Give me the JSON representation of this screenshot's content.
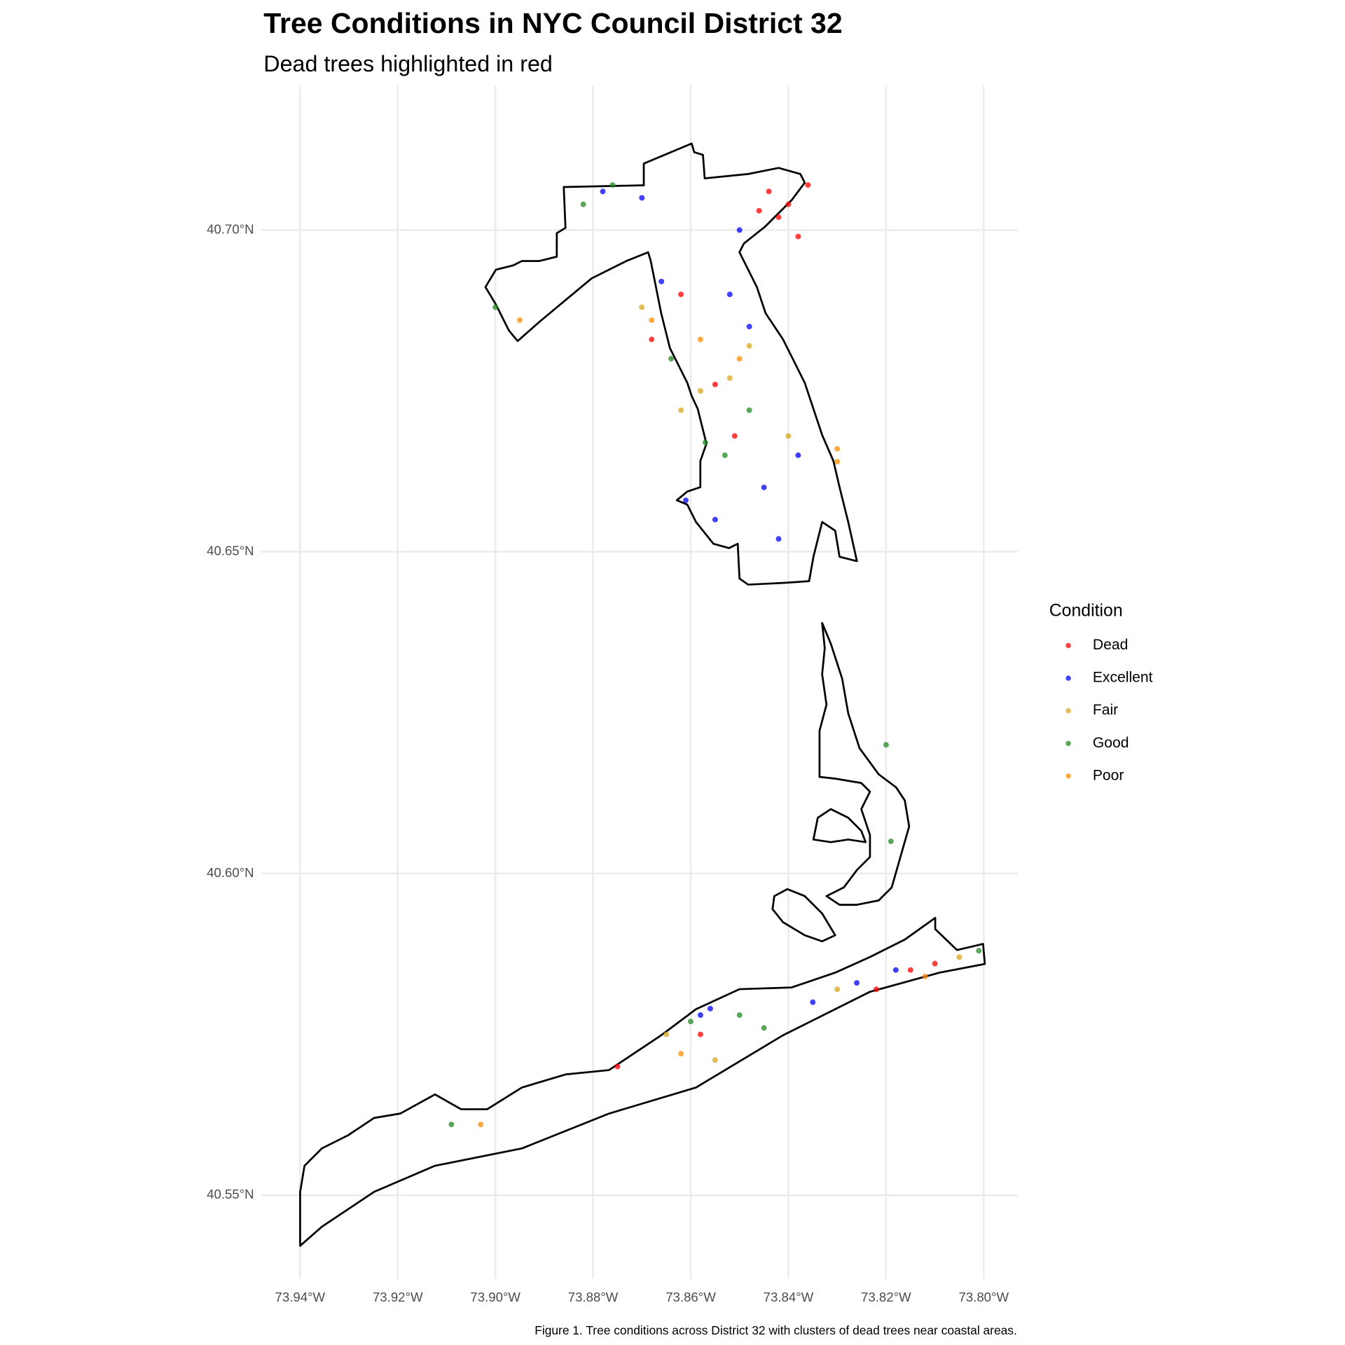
{
  "chart_data": {
    "type": "scatter",
    "title": "Tree Conditions in NYC Council District 32",
    "subtitle": "Dead trees highlighted in red",
    "caption": "Figure 1. Tree conditions across District 32 with clusters of dead trees near coastal areas.",
    "legend_title": "Condition",
    "legend_position": "right",
    "grid": true,
    "xlim": [
      -73.948,
      -73.793
    ],
    "ylim": [
      40.537,
      40.7225
    ],
    "xticks": [
      {
        "value": -73.94,
        "label": "73.94°W"
      },
      {
        "value": -73.92,
        "label": "73.92°W"
      },
      {
        "value": -73.9,
        "label": "73.90°W"
      },
      {
        "value": -73.88,
        "label": "73.88°W"
      },
      {
        "value": -73.86,
        "label": "73.86°W"
      },
      {
        "value": -73.84,
        "label": "73.84°W"
      },
      {
        "value": -73.82,
        "label": "73.82°W"
      },
      {
        "value": -73.8,
        "label": "73.80°W"
      }
    ],
    "yticks": [
      {
        "value": 40.55,
        "label": "40.55°N"
      },
      {
        "value": 40.6,
        "label": "40.60°N"
      },
      {
        "value": 40.65,
        "label": "40.65°N"
      },
      {
        "value": 40.7,
        "label": "40.70°N"
      }
    ],
    "series": [
      {
        "name": "Dead",
        "color": "#ff0000",
        "x": [
          -73.844,
          -73.84,
          -73.836,
          -73.842,
          -73.838,
          -73.846,
          -73.862,
          -73.868,
          -73.855,
          -73.815,
          -73.81,
          -73.822,
          -73.875,
          -73.858,
          -73.851
        ],
        "y": [
          40.706,
          40.704,
          40.707,
          40.702,
          40.699,
          40.703,
          40.69,
          40.683,
          40.676,
          40.585,
          40.586,
          40.582,
          40.57,
          40.575,
          40.668
        ]
      },
      {
        "name": "Excellent",
        "color": "#0000ff",
        "x": [
          -73.878,
          -73.87,
          -73.852,
          -73.848,
          -73.845,
          -73.855,
          -73.842,
          -73.838,
          -73.85,
          -73.861,
          -73.858,
          -73.835,
          -73.826,
          -73.818,
          -73.856,
          -73.866
        ],
        "y": [
          40.706,
          40.705,
          40.69,
          40.685,
          40.66,
          40.655,
          40.652,
          40.665,
          40.7,
          40.658,
          40.578,
          40.58,
          40.583,
          40.585,
          40.579,
          40.692
        ]
      },
      {
        "name": "Fair",
        "color": "#daa520",
        "x": [
          -73.87,
          -73.858,
          -73.852,
          -73.862,
          -73.848,
          -73.84,
          -73.865,
          -73.855,
          -73.83,
          -73.805
        ],
        "y": [
          40.688,
          40.675,
          40.677,
          40.672,
          40.682,
          40.668,
          40.575,
          40.571,
          40.582,
          40.587
        ]
      },
      {
        "name": "Good",
        "color": "#228b22",
        "x": [
          -73.882,
          -73.876,
          -73.864,
          -73.857,
          -73.853,
          -73.848,
          -73.9,
          -73.82,
          -73.819,
          -73.86,
          -73.85,
          -73.909,
          -73.801,
          -73.845
        ],
        "y": [
          40.704,
          40.707,
          40.68,
          40.667,
          40.665,
          40.672,
          40.688,
          40.62,
          40.605,
          40.577,
          40.578,
          40.561,
          40.588,
          40.576
        ]
      },
      {
        "name": "Poor",
        "color": "#ff8c00",
        "x": [
          -73.868,
          -73.858,
          -73.85,
          -73.903,
          -73.895,
          -73.862,
          -73.812,
          -73.83,
          -73.83
        ],
        "y": [
          40.686,
          40.683,
          40.68,
          40.561,
          40.686,
          40.572,
          40.584,
          40.666,
          40.664
        ]
      }
    ]
  }
}
